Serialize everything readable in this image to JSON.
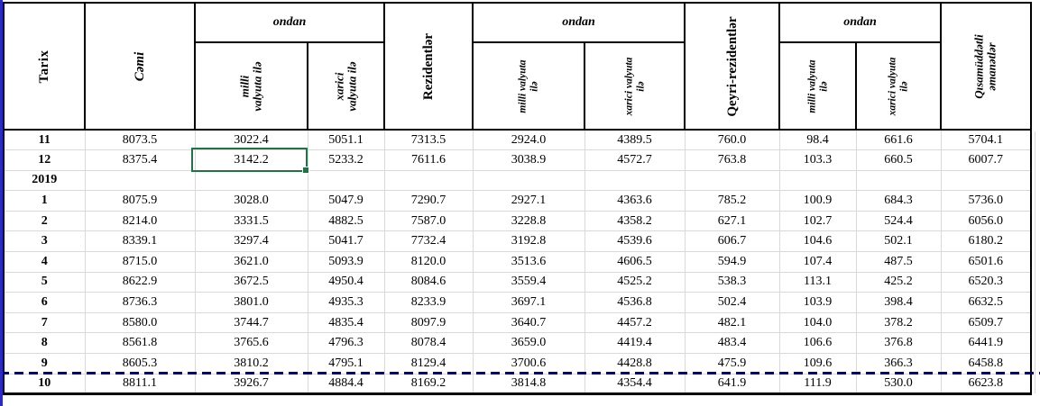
{
  "window": {
    "pane_edge_color": "#2b2bc4",
    "pagebreak_color": "#00008b",
    "selection_color": "#217346"
  },
  "table": {
    "headers": {
      "tarix": "Tarix",
      "cami": "Cəmi",
      "ondan1": "ondan",
      "ondan2": "ondan",
      "ondan3": "ondan",
      "milli1": "milli\nvalyuta ilə",
      "xarici1": "xarici\nvalyuta ilə",
      "rezidentlar": "Rezidentlər",
      "milli2": "milli valyuta\nilə",
      "xarici2": "xarici valyuta\nilə",
      "qeyri_rezidentlar": "Qeyri-rezidentlər",
      "milli3": "milli valyuta\nilə",
      "xarici3": "xarici valyuta\nilə",
      "qisamuddatli": "Qısamüddətli\nəmanətlər"
    },
    "rows": [
      {
        "label": "11",
        "values": [
          "8073.5",
          "3022.4",
          "5051.1",
          "7313.5",
          "2924.0",
          "4389.5",
          "760.0",
          "98.4",
          "661.6",
          "5704.1"
        ]
      },
      {
        "label": "12",
        "values": [
          "8375.4",
          "3142.2",
          "5233.2",
          "7611.6",
          "3038.9",
          "4572.7",
          "763.8",
          "103.3",
          "660.5",
          "6007.7"
        ]
      },
      {
        "label": "2019",
        "values": [
          "",
          "",
          "",
          "",
          "",
          "",
          "",
          "",
          "",
          ""
        ]
      },
      {
        "label": "1",
        "values": [
          "8075.9",
          "3028.0",
          "5047.9",
          "7290.7",
          "2927.1",
          "4363.6",
          "785.2",
          "100.9",
          "684.3",
          "5736.0"
        ]
      },
      {
        "label": "2",
        "values": [
          "8214.0",
          "3331.5",
          "4882.5",
          "7587.0",
          "3228.8",
          "4358.2",
          "627.1",
          "102.7",
          "524.4",
          "6056.0"
        ]
      },
      {
        "label": "3",
        "values": [
          "8339.1",
          "3297.4",
          "5041.7",
          "7732.4",
          "3192.8",
          "4539.6",
          "606.7",
          "104.6",
          "502.1",
          "6180.2"
        ]
      },
      {
        "label": "4",
        "values": [
          "8715.0",
          "3621.0",
          "5093.9",
          "8120.0",
          "3513.6",
          "4606.5",
          "594.9",
          "107.4",
          "487.5",
          "6501.6"
        ]
      },
      {
        "label": "5",
        "values": [
          "8622.9",
          "3672.5",
          "4950.4",
          "8084.6",
          "3559.4",
          "4525.2",
          "538.3",
          "113.1",
          "425.2",
          "6520.3"
        ]
      },
      {
        "label": "6",
        "values": [
          "8736.3",
          "3801.0",
          "4935.3",
          "8233.9",
          "3697.1",
          "4536.8",
          "502.4",
          "103.9",
          "398.4",
          "6632.5"
        ]
      },
      {
        "label": "7",
        "values": [
          "8580.0",
          "3744.7",
          "4835.4",
          "8097.9",
          "3640.7",
          "4457.2",
          "482.1",
          "104.0",
          "378.2",
          "6509.7"
        ]
      },
      {
        "label": "8",
        "values": [
          "8561.8",
          "3765.6",
          "4796.3",
          "8078.4",
          "3659.0",
          "4419.4",
          "483.4",
          "106.6",
          "376.8",
          "6441.9"
        ]
      },
      {
        "label": "9",
        "values": [
          "8605.3",
          "3810.2",
          "4795.1",
          "8129.4",
          "3700.6",
          "4428.8",
          "475.9",
          "109.6",
          "366.3",
          "6458.8"
        ]
      },
      {
        "label": "10",
        "values": [
          "8811.1",
          "3926.7",
          "4884.4",
          "8169.2",
          "3814.8",
          "4354.4",
          "641.9",
          "111.9",
          "530.0",
          "6623.8"
        ]
      }
    ],
    "selection": {
      "row_label": "12",
      "column": "milli valyuta ilə",
      "value": "3142.2"
    }
  }
}
